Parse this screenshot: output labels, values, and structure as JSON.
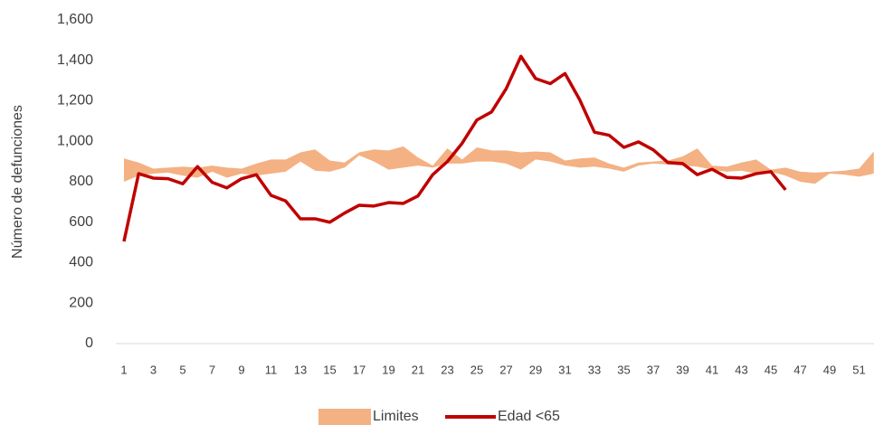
{
  "chart_data": {
    "type": "line",
    "y_label": "Número de defunciones",
    "categories": [
      "1",
      null,
      "3",
      null,
      "5",
      null,
      "7",
      null,
      "9",
      null,
      "11",
      null,
      "13",
      null,
      "15",
      null,
      "17",
      null,
      "19",
      null,
      "21",
      null,
      "23",
      null,
      "25",
      null,
      "27",
      null,
      "29",
      null,
      "31",
      null,
      "33",
      null,
      "35",
      null,
      "37",
      null,
      "39",
      null,
      "41",
      null,
      "43",
      null,
      "45",
      null,
      "47",
      null,
      "49",
      null,
      "51",
      null
    ],
    "ylim": [
      0,
      1600
    ],
    "yticks": [
      0,
      200,
      400,
      600,
      800,
      {
        "value": 1000,
        "label": "1,000"
      },
      {
        "value": 1200,
        "label": "1,200"
      },
      {
        "value": 1400,
        "label": "1,400"
      },
      {
        "value": 1600,
        "label": "1,600"
      }
    ],
    "legend": "bottom",
    "series": [
      {
        "name": "Limites",
        "color": "#f4b183",
        "lower": [
          800,
          830,
          840,
          845,
          830,
          820,
          850,
          820,
          840,
          830,
          840,
          850,
          900,
          855,
          850,
          870,
          930,
          900,
          860,
          870,
          880,
          870,
          890,
          890,
          900,
          900,
          890,
          860,
          910,
          900,
          880,
          870,
          875,
          865,
          850,
          880,
          890,
          885,
          880,
          875,
          860,
          850,
          855,
          840,
          850,
          830,
          800,
          790,
          840,
          835,
          825,
          840
        ],
        "upper": [
          915,
          895,
          865,
          870,
          875,
          870,
          880,
          870,
          865,
          890,
          910,
          910,
          945,
          960,
          905,
          895,
          945,
          960,
          955,
          975,
          920,
          880,
          965,
          910,
          970,
          955,
          955,
          945,
          950,
          945,
          905,
          915,
          920,
          890,
          870,
          895,
          900,
          905,
          925,
          965,
          880,
          875,
          895,
          910,
          860,
          870,
          850,
          845,
          850,
          855,
          865,
          950
        ]
      },
      {
        "name": "Edad <65",
        "color": "#c00000",
        "values": [
          505,
          840,
          818,
          815,
          790,
          875,
          797,
          770,
          815,
          835,
          733,
          705,
          617,
          617,
          600,
          645,
          684,
          680,
          697,
          693,
          730,
          835,
          900,
          990,
          1105,
          1145,
          1260,
          1420,
          1310,
          1285,
          1335,
          1205,
          1045,
          1030,
          970,
          997,
          958,
          895,
          890,
          835,
          862,
          822,
          818,
          840,
          850,
          760,
          null,
          null,
          null,
          null,
          null,
          null
        ]
      }
    ]
  }
}
